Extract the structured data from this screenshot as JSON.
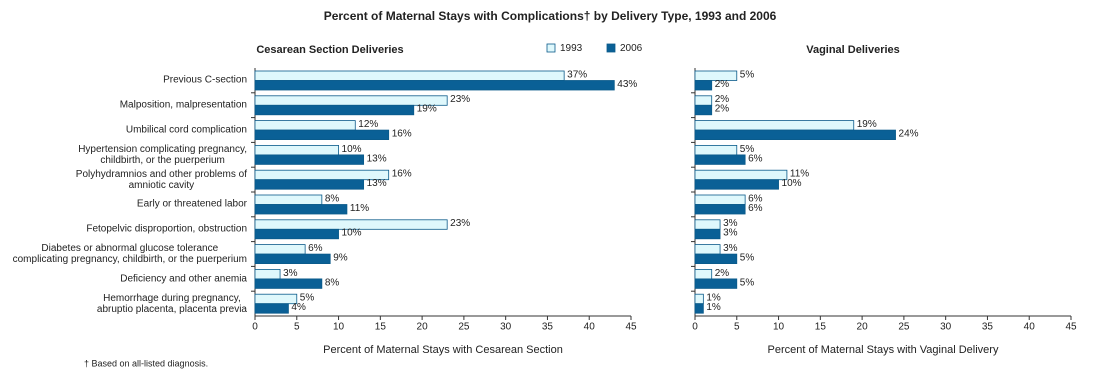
{
  "title": "Percent of Maternal Stays with Complications† by Delivery Type, 1993 and 2006",
  "footnote": "† Based on all-listed diagnosis.",
  "chart_data": [
    {
      "type": "bar",
      "orientation": "horizontal",
      "title": "Cesarean Section Deliveries",
      "xlabel": "Percent of Maternal Stays with Cesarean Section",
      "categories": [
        "Previous C-section",
        "Malposition, malpresentation",
        "Umbilical cord complication",
        "Hypertension complicating pregnancy,\nchildbirth, or the puerperium",
        "Polyhydramnios and other problems of\namniotic cavity",
        "Early or threatened labor",
        "Fetopelvic disproportion, obstruction",
        "Diabetes or abnormal glucose tolerance\ncomplicating pregnancy, childbirth, or the puerperium",
        "Deficiency and other anemia",
        "Hemorrhage during pregnancy,\nabruptio placenta, placenta previa"
      ],
      "series": [
        {
          "name": "1993",
          "color": "#dff8fc",
          "values": [
            37,
            23,
            12,
            10,
            16,
            8,
            23,
            6,
            3,
            5
          ],
          "value_labels": [
            "37%",
            "23%",
            "12%",
            "10%",
            "16%",
            "8%",
            "23%",
            "6%",
            "3%",
            "5%"
          ]
        },
        {
          "name": "2006",
          "color": "#0a6096",
          "values": [
            43,
            19,
            16,
            13,
            13,
            11,
            10,
            9,
            8,
            4
          ],
          "value_labels": [
            "43%",
            "19%",
            "16%",
            "13%",
            "13%",
            "11%",
            "10%",
            "9%",
            "8%",
            "4%"
          ]
        }
      ],
      "xlim": [
        0,
        45
      ],
      "xticks": [
        0,
        5,
        10,
        15,
        20,
        25,
        30,
        35,
        40,
        45
      ]
    },
    {
      "type": "bar",
      "orientation": "horizontal",
      "title": "Vaginal Deliveries",
      "xlabel": "Percent of Maternal Stays with Vaginal Delivery",
      "series": [
        {
          "color": "#dff8fc",
          "values": [
            5,
            2,
            19,
            5,
            11,
            6,
            3,
            3,
            2,
            1
          ],
          "value_labels": [
            "5%",
            "2%",
            "19%",
            "5%",
            "11%",
            "6%",
            "3%",
            "3%",
            "2%",
            "1%"
          ]
        },
        {
          "color": "#0a6096",
          "values": [
            2,
            2,
            24,
            6,
            10,
            6,
            3,
            5,
            5,
            1
          ],
          "value_labels": [
            "2%",
            "2%",
            "24%",
            "6%",
            "10%",
            "6%",
            "3%",
            "5%",
            "5%",
            "1%"
          ]
        }
      ],
      "xlim": [
        0,
        45
      ],
      "xticks": [
        0,
        5,
        10,
        15,
        20,
        25,
        30,
        35,
        40,
        45
      ]
    }
  ]
}
